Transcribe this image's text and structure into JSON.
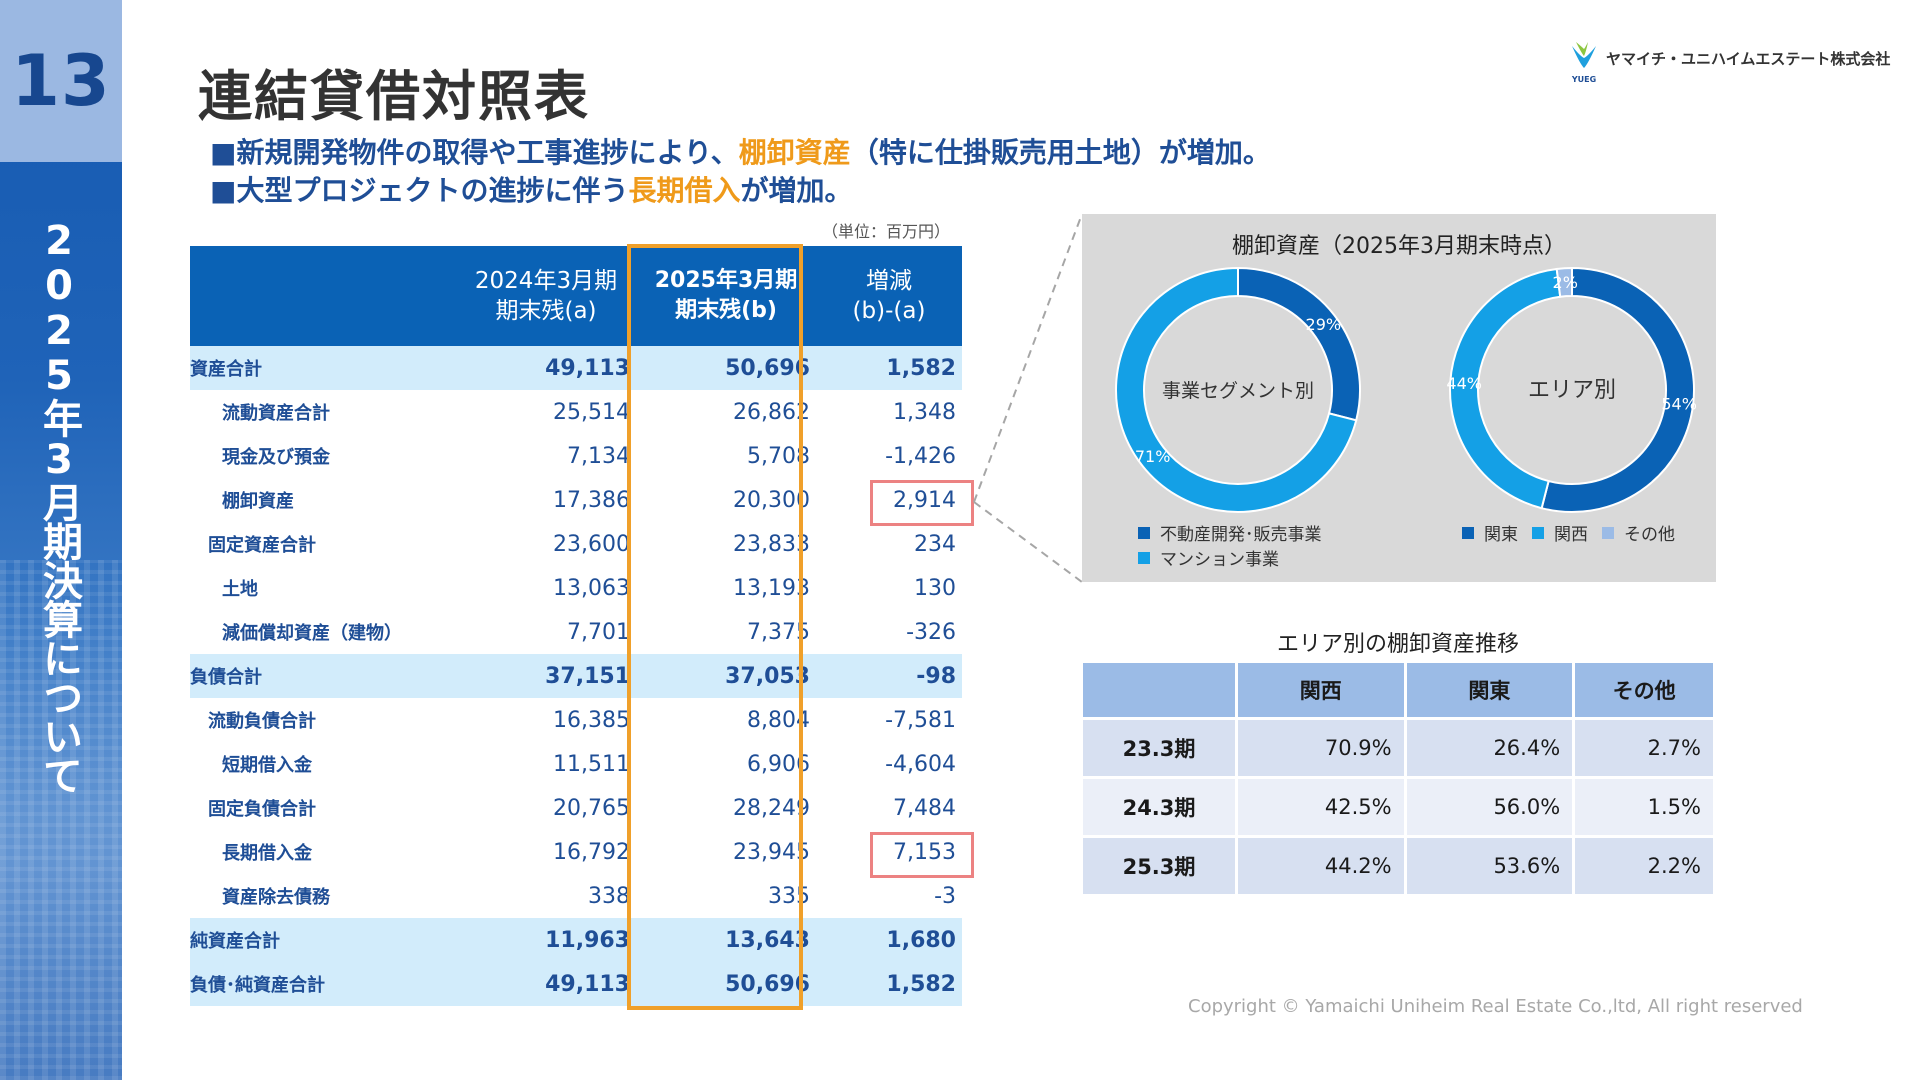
{
  "page_number": "13",
  "side_title": "2025年3月期決算について",
  "title": "連結貸借対照表",
  "company": "ヤマイチ・ユニハイムエステート株式会社",
  "logo_mark": "YUEG",
  "colors": {
    "primary": "#0a62b5",
    "accent": "#ef9a1a",
    "total_row": "#d2ecfb",
    "highlight_box": "#ec8282"
  },
  "bullets": [
    {
      "marker": "■",
      "pre": "新規開発物件の取得や工事進捗により、",
      "hl": "棚卸資産",
      "post": "（特に仕掛販売用土地）が増加。"
    },
    {
      "marker": "■",
      "pre": "大型プロジェクトの進捗に伴う",
      "hl": "長期借入",
      "post": "が増加。"
    }
  ],
  "unit_note": "（単位：百万円）",
  "balance_sheet": {
    "headers": {
      "label": "",
      "prev_1": "2024年3月期",
      "prev_2": "期末残(a)",
      "cur_1": "2025年3月期",
      "cur_2": "期末残(b)",
      "diff_1": "増減",
      "diff_2": "(b)-(a)"
    },
    "rows": [
      {
        "label": "資産合計",
        "a": "49,113",
        "b": "50,696",
        "diff": "1,582",
        "total": true,
        "indent": 0
      },
      {
        "label": "流動資産合計",
        "a": "25,514",
        "b": "26,862",
        "diff": "1,348",
        "total": false,
        "indent": 2
      },
      {
        "label": "現金及び預金",
        "a": "7,134",
        "b": "5,708",
        "diff": "-1,426",
        "total": false,
        "indent": 2
      },
      {
        "label": "棚卸資産",
        "a": "17,386",
        "b": "20,300",
        "diff": "2,914",
        "total": false,
        "indent": 2
      },
      {
        "label": "固定資産合計",
        "a": "23,600",
        "b": "23,833",
        "diff": "234",
        "total": false,
        "indent": 1
      },
      {
        "label": "土地",
        "a": "13,063",
        "b": "13,193",
        "diff": "130",
        "total": false,
        "indent": 2
      },
      {
        "label": "減価償却資産（建物）",
        "a": "7,701",
        "b": "7,375",
        "diff": "-326",
        "total": false,
        "indent": 2
      },
      {
        "label": "負債合計",
        "a": "37,151",
        "b": "37,053",
        "diff": "-98",
        "total": true,
        "indent": 0
      },
      {
        "label": "流動負債合計",
        "a": "16,385",
        "b": "8,804",
        "diff": "-7,581",
        "total": false,
        "indent": 1
      },
      {
        "label": "短期借入金",
        "a": "11,511",
        "b": "6,906",
        "diff": "-4,604",
        "total": false,
        "indent": 2
      },
      {
        "label": "固定負債合計",
        "a": "20,765",
        "b": "28,249",
        "diff": "7,484",
        "total": false,
        "indent": 1
      },
      {
        "label": "長期借入金",
        "a": "16,792",
        "b": "23,945",
        "diff": "7,153",
        "total": false,
        "indent": 2
      },
      {
        "label": "資産除去債務",
        "a": "338",
        "b": "335",
        "diff": "-3",
        "total": false,
        "indent": 2
      },
      {
        "label": "純資産合計",
        "a": "11,963",
        "b": "13,643",
        "diff": "1,680",
        "total": true,
        "indent": 0
      },
      {
        "label": "負債･純資産合計",
        "a": "49,113",
        "b": "50,696",
        "diff": "1,582",
        "total": true,
        "indent": 0
      }
    ]
  },
  "chart_data": [
    {
      "type": "pie",
      "title": "棚卸資産（2025年3月期末時点）",
      "center_label": "事業セグメント別",
      "categories": [
        "不動産開発･販売事業",
        "マンション事業"
      ],
      "values": [
        29,
        71
      ],
      "labels": [
        "29%",
        "71%"
      ],
      "colors": [
        "#0a62b5",
        "#14a0e6"
      ]
    },
    {
      "type": "pie",
      "title": "棚卸資産（2025年3月期末時点）",
      "center_label": "エリア別",
      "categories": [
        "関東",
        "関西",
        "その他"
      ],
      "values": [
        54,
        44,
        2
      ],
      "labels": [
        "54%",
        "44%",
        "2%"
      ],
      "colors": [
        "#0a62b5",
        "#14a0e6",
        "#9bbbe6"
      ]
    }
  ],
  "area_table": {
    "title": "エリア別の棚卸資産推移",
    "headers": [
      "",
      "関西",
      "関東",
      "その他"
    ],
    "rows": [
      {
        "period": "23.3期",
        "values": [
          "70.9%",
          "26.4%",
          "2.7%"
        ]
      },
      {
        "period": "24.3期",
        "values": [
          "42.5%",
          "56.0%",
          "1.5%"
        ]
      },
      {
        "period": "25.3期",
        "values": [
          "44.2%",
          "53.6%",
          "2.2%"
        ]
      }
    ]
  },
  "copyright": "Copyright © Yamaichi Uniheim Real Estate Co.,ltd, All right reserved"
}
